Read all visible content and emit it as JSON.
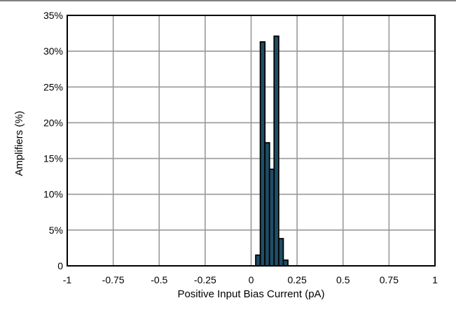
{
  "chart_data": {
    "type": "bar",
    "xlabel": "Positive Input Bias Current (pA)",
    "ylabel": "Amplifiers (%)",
    "xlim": [
      -1,
      1
    ],
    "ylim": [
      0,
      35
    ],
    "grid": true,
    "bar_color": "#1f4e66",
    "bar_edge_color": "#000000",
    "grid_color": "#999999",
    "bin_width": 0.025,
    "x_ticks": [
      -1,
      -0.75,
      -0.5,
      -0.25,
      0,
      0.25,
      0.5,
      0.75,
      1
    ],
    "x_tick_labels": [
      "-1",
      "-0.75",
      "-0.5",
      "-0.25",
      "0",
      "0.25",
      "0.5",
      "0.75",
      "1"
    ],
    "y_ticks": [
      0,
      5,
      10,
      15,
      20,
      25,
      30,
      35
    ],
    "y_tick_labels": [
      "0",
      "5%",
      "10%",
      "15%",
      "20%",
      "25%",
      "30%",
      "35%"
    ],
    "bins": [
      {
        "x0": 0.025,
        "x1": 0.05,
        "value": 1.5
      },
      {
        "x0": 0.05,
        "x1": 0.075,
        "value": 31.3
      },
      {
        "x0": 0.075,
        "x1": 0.1,
        "value": 17.2
      },
      {
        "x0": 0.1,
        "x1": 0.125,
        "value": 13.5
      },
      {
        "x0": 0.125,
        "x1": 0.15,
        "value": 32.1
      },
      {
        "x0": 0.15,
        "x1": 0.175,
        "value": 3.8
      },
      {
        "x0": 0.175,
        "x1": 0.2,
        "value": 0.8
      }
    ]
  }
}
